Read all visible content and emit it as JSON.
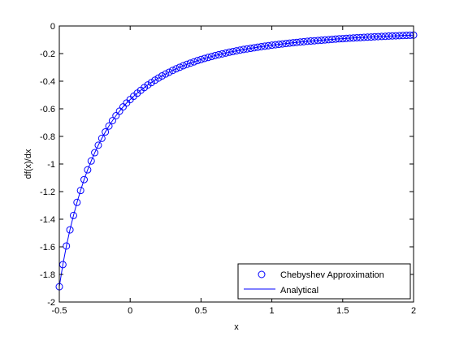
{
  "chart_data": {
    "type": "line",
    "title": "",
    "xlabel": "x",
    "ylabel": "df(x)/dx",
    "xlim": [
      -0.5,
      2
    ],
    "ylim": [
      -2,
      0
    ],
    "xticks": [
      -0.5,
      0,
      0.5,
      1,
      1.5,
      2
    ],
    "xtick_labels": [
      "-0.5",
      "0",
      "0.5",
      "1",
      "1.5",
      "2"
    ],
    "yticks": [
      -2,
      -1.8,
      -1.6,
      -1.4,
      -1.2,
      -1,
      -0.8,
      -0.6,
      -0.4,
      -0.2,
      0
    ],
    "ytick_labels": [
      "-2",
      "-1.8",
      "-1.6",
      "-1.4",
      "-1.2",
      "-1",
      "-0.8",
      "-0.6",
      "-0.4",
      "-0.2",
      "0"
    ],
    "grid": false,
    "legend": {
      "position": "bottom-right"
    },
    "series": [
      {
        "name": "Chebyshev Approximation",
        "style": "markers",
        "marker": "circle",
        "color": "#0000ff",
        "x": [
          -0.5,
          -0.475,
          -0.45,
          -0.425,
          -0.4,
          -0.375,
          -0.35,
          -0.325,
          -0.3,
          -0.275,
          -0.25,
          -0.225,
          -0.2,
          -0.175,
          -0.15,
          -0.125,
          -0.1,
          -0.075,
          -0.05,
          -0.025,
          0,
          0.025,
          0.05,
          0.075,
          0.1,
          0.125,
          0.15,
          0.175,
          0.2,
          0.225,
          0.25,
          0.275,
          0.3,
          0.325,
          0.35,
          0.375,
          0.4,
          0.425,
          0.45,
          0.475,
          0.5,
          0.525,
          0.55,
          0.575,
          0.6,
          0.625,
          0.65,
          0.675,
          0.7,
          0.725,
          0.75,
          0.775,
          0.8,
          0.825,
          0.85,
          0.875,
          0.9,
          0.925,
          0.95,
          0.975,
          1,
          1.025,
          1.05,
          1.075,
          1.1,
          1.125,
          1.15,
          1.175,
          1.2,
          1.225,
          1.25,
          1.275,
          1.3,
          1.325,
          1.35,
          1.375,
          1.4,
          1.425,
          1.45,
          1.475,
          1.5,
          1.525,
          1.55,
          1.575,
          1.6,
          1.625,
          1.65,
          1.675,
          1.7,
          1.725,
          1.75,
          1.775,
          1.8,
          1.825,
          1.85,
          1.875,
          1.9,
          1.925,
          1.95,
          1.975,
          2
        ],
        "y": [
          -1.889,
          -1.729,
          -1.594,
          -1.477,
          -1.373,
          -1.278,
          -1.192,
          -1.113,
          -1.042,
          -0.978,
          -0.918,
          -0.864,
          -0.814,
          -0.768,
          -0.725,
          -0.686,
          -0.65,
          -0.617,
          -0.586,
          -0.558,
          -0.533,
          -0.509,
          -0.487,
          -0.466,
          -0.446,
          -0.427,
          -0.41,
          -0.393,
          -0.377,
          -0.362,
          -0.348,
          -0.335,
          -0.322,
          -0.31,
          -0.299,
          -0.288,
          -0.278,
          -0.269,
          -0.26,
          -0.251,
          -0.243,
          -0.235,
          -0.228,
          -0.221,
          -0.214,
          -0.208,
          -0.202,
          -0.196,
          -0.19,
          -0.185,
          -0.18,
          -0.175,
          -0.17,
          -0.166,
          -0.162,
          -0.158,
          -0.154,
          -0.15,
          -0.146,
          -0.143,
          -0.139,
          -0.136,
          -0.133,
          -0.13,
          -0.127,
          -0.124,
          -0.121,
          -0.119,
          -0.116,
          -0.114,
          -0.111,
          -0.109,
          -0.107,
          -0.105,
          -0.103,
          -0.101,
          -0.099,
          -0.097,
          -0.095,
          -0.093,
          -0.092,
          -0.09,
          -0.088,
          -0.087,
          -0.085,
          -0.084,
          -0.082,
          -0.081,
          -0.08,
          -0.078,
          -0.077,
          -0.076,
          -0.075,
          -0.073,
          -0.072,
          -0.071,
          -0.07,
          -0.069,
          -0.068,
          -0.067,
          -0.066
        ]
      },
      {
        "name": "Analytical",
        "style": "line",
        "color": "#0000ff",
        "x": [
          -0.5,
          -0.475,
          -0.45,
          -0.425,
          -0.4,
          -0.375,
          -0.35,
          -0.325,
          -0.3,
          -0.275,
          -0.25,
          -0.225,
          -0.2,
          -0.175,
          -0.15,
          -0.125,
          -0.1,
          -0.075,
          -0.05,
          -0.025,
          0,
          0.025,
          0.05,
          0.075,
          0.1,
          0.125,
          0.15,
          0.175,
          0.2,
          0.225,
          0.25,
          0.275,
          0.3,
          0.325,
          0.35,
          0.375,
          0.4,
          0.425,
          0.45,
          0.475,
          0.5,
          0.525,
          0.55,
          0.575,
          0.6,
          0.625,
          0.65,
          0.675,
          0.7,
          0.725,
          0.75,
          0.775,
          0.8,
          0.825,
          0.85,
          0.875,
          0.9,
          0.925,
          0.95,
          0.975,
          1,
          1.025,
          1.05,
          1.075,
          1.1,
          1.125,
          1.15,
          1.175,
          1.2,
          1.225,
          1.25,
          1.275,
          1.3,
          1.325,
          1.35,
          1.375,
          1.4,
          1.425,
          1.45,
          1.475,
          1.5,
          1.525,
          1.55,
          1.575,
          1.6,
          1.625,
          1.65,
          1.675,
          1.7,
          1.725,
          1.75,
          1.775,
          1.8,
          1.825,
          1.85,
          1.875,
          1.9,
          1.925,
          1.95,
          1.975,
          2
        ],
        "y": [
          -1.889,
          -1.729,
          -1.594,
          -1.477,
          -1.373,
          -1.278,
          -1.192,
          -1.113,
          -1.042,
          -0.978,
          -0.918,
          -0.864,
          -0.814,
          -0.768,
          -0.725,
          -0.686,
          -0.65,
          -0.617,
          -0.586,
          -0.558,
          -0.533,
          -0.509,
          -0.487,
          -0.466,
          -0.446,
          -0.427,
          -0.41,
          -0.393,
          -0.377,
          -0.362,
          -0.348,
          -0.335,
          -0.322,
          -0.31,
          -0.299,
          -0.288,
          -0.278,
          -0.269,
          -0.26,
          -0.251,
          -0.243,
          -0.235,
          -0.228,
          -0.221,
          -0.214,
          -0.208,
          -0.202,
          -0.196,
          -0.19,
          -0.185,
          -0.18,
          -0.175,
          -0.17,
          -0.166,
          -0.162,
          -0.158,
          -0.154,
          -0.15,
          -0.146,
          -0.143,
          -0.139,
          -0.136,
          -0.133,
          -0.13,
          -0.127,
          -0.124,
          -0.121,
          -0.119,
          -0.116,
          -0.114,
          -0.111,
          -0.109,
          -0.107,
          -0.105,
          -0.103,
          -0.101,
          -0.099,
          -0.097,
          -0.095,
          -0.093,
          -0.092,
          -0.09,
          -0.088,
          -0.087,
          -0.085,
          -0.084,
          -0.082,
          -0.081,
          -0.08,
          -0.078,
          -0.077,
          -0.076,
          -0.075,
          -0.073,
          -0.072,
          -0.071,
          -0.07,
          -0.069,
          -0.068,
          -0.067,
          -0.066
        ]
      }
    ]
  }
}
